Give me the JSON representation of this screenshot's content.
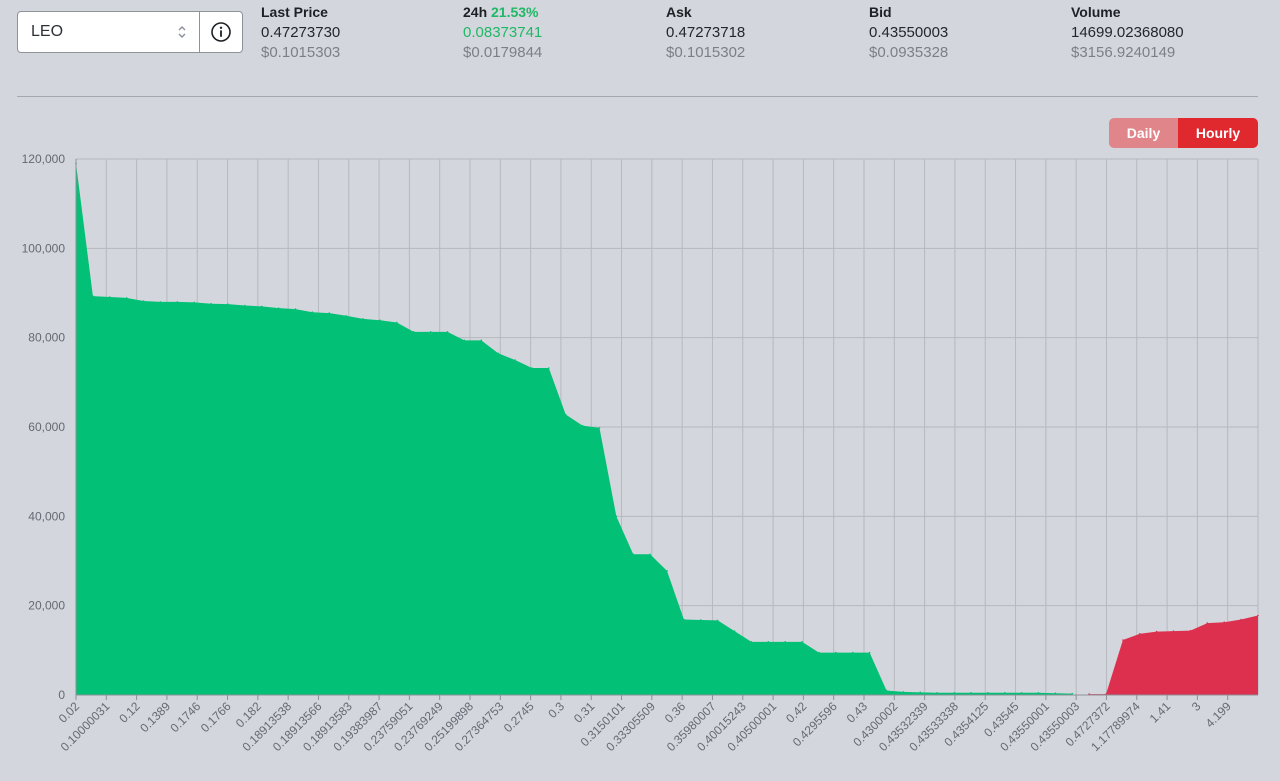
{
  "selector": {
    "value": "LEO"
  },
  "stats": [
    {
      "label": "Last Price",
      "value": "0.47273730",
      "usd": "$0.1015303"
    },
    {
      "label": "24h",
      "change": "21.53%",
      "value": "0.08373741",
      "usd": "$0.0179844"
    },
    {
      "label": "Ask",
      "value": "0.47273718",
      "usd": "$0.1015302"
    },
    {
      "label": "Bid",
      "value": "0.43550003",
      "usd": "$0.0935328"
    },
    {
      "label": "Volume",
      "value": "14699.02368080",
      "usd": "$3156.9240149"
    }
  ],
  "toggle": {
    "daily": "Daily",
    "hourly": "Hourly",
    "active": "Hourly"
  },
  "colors": {
    "bid_area": "#02c076",
    "ask_area": "#dd2f4e",
    "active_button": "#e0282f",
    "inactive_button": "#e0868a",
    "positive": "#1fb866"
  },
  "chart_data": {
    "type": "area",
    "ylim": [
      0,
      120000
    ],
    "yticks": [
      "0",
      "20,000",
      "40,000",
      "60,000",
      "80,000",
      "100,000",
      "120,000"
    ],
    "ytick_values": [
      0,
      20000,
      40000,
      60000,
      80000,
      100000,
      120000
    ],
    "grid": true,
    "x_tick_labels": [
      "0.02",
      "0.10000031",
      "0.12",
      "0.1389",
      "0.1746",
      "0.1766",
      "0.182",
      "0.18913538",
      "0.18913566",
      "0.18913583",
      "0.19383987",
      "0.23759051",
      "0.23769249",
      "0.25199898",
      "0.27364753",
      "0.2745",
      "0.3",
      "0.31",
      "0.3150101",
      "0.33305509",
      "0.36",
      "0.35980007",
      "0.40015243",
      "0.40500001",
      "0.42",
      "0.4295596",
      "0.43",
      "0.4300002",
      "0.43532339",
      "0.43533338",
      "0.4354125",
      "0.43545",
      "0.43550001",
      "0.43550003",
      "0.4727372",
      "1.17789974",
      "1.41",
      "3",
      "4.199"
    ],
    "series": [
      {
        "side": "bid",
        "values": [
          119000,
          89300,
          89100,
          88900,
          88200,
          88000,
          88000,
          87900,
          87600,
          87500,
          87200,
          87000,
          86600,
          86400,
          85700,
          85500,
          84900,
          84200,
          83900,
          83400,
          81300,
          81300,
          81300,
          79400,
          79400,
          76500,
          75000,
          73200,
          73200,
          62800,
          60300,
          59800,
          40000,
          31500,
          31500,
          27800,
          16900,
          16800,
          16700,
          14300,
          11900,
          11900,
          11900,
          11900,
          9500,
          9500,
          9500,
          9500,
          1000,
          700,
          600,
          500,
          500,
          500,
          500,
          500,
          500,
          500,
          400,
          300
        ]
      },
      {
        "side": "ask",
        "values": [
          200,
          200,
          12300,
          13700,
          14200,
          14300,
          14400,
          16100,
          16300,
          16900,
          17800
        ]
      }
    ]
  }
}
